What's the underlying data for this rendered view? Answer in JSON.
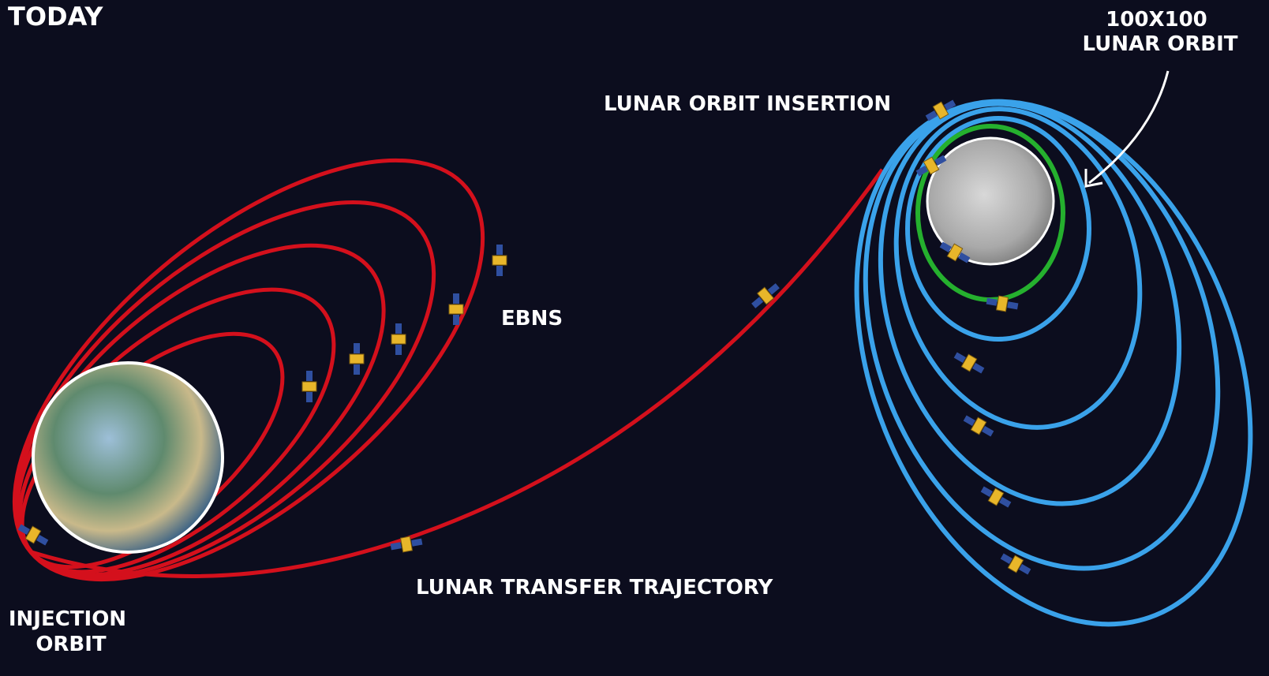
{
  "brand": "TODAY",
  "labels": {
    "lunar_orbit": [
      "100X100",
      "LUNAR ORBIT"
    ],
    "lunar_orbit_insertion": "LUNAR ORBIT INSERTION",
    "ebns": "EBNS",
    "lunar_transfer_trajectory": "LUNAR TRANSFER TRAJECTORY",
    "injection_orbit": [
      "INJECTION",
      "ORBIT"
    ]
  }
}
